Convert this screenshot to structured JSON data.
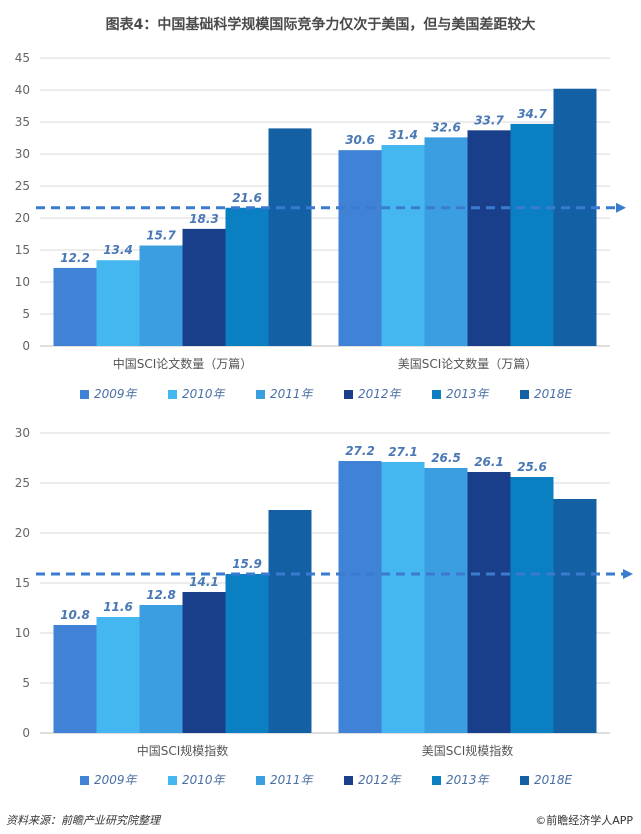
{
  "title": "图表4：中国基础科学规模国际竞争力仅次于美国，但与美国差距较大",
  "footer": {
    "source": "资料来源：前瞻产业研究院整理",
    "brand": "©前瞻经济学人APP"
  },
  "colors": {
    "series": [
      "#3f82d6",
      "#45b7f0",
      "#3a9ee0",
      "#1a3f8a",
      "#0a7fc2",
      "#1460a5"
    ],
    "dashed_line": "#3a7bd0"
  },
  "chart_data": [
    {
      "type": "bar",
      "categories": [
        "中国SCI论文数量（万篇）",
        "美国SCI论文数量（万篇）"
      ],
      "legend_labels": [
        "2009年",
        "2010年",
        "2011年",
        "2012年",
        "2013年",
        "2018E"
      ],
      "series": [
        {
          "values": [
            12.2,
            30.6
          ],
          "labels": [
            "12.2",
            "30.6"
          ]
        },
        {
          "values": [
            13.4,
            31.4
          ],
          "labels": [
            "13.4",
            "31.4"
          ]
        },
        {
          "values": [
            15.7,
            32.6
          ],
          "labels": [
            "15.7",
            "32.6"
          ]
        },
        {
          "values": [
            18.3,
            33.7
          ],
          "labels": [
            "18.3",
            "33.7"
          ]
        },
        {
          "values": [
            21.6,
            34.7
          ],
          "labels": [
            "21.6",
            "34.7"
          ]
        },
        {
          "values": [
            34.0,
            40.2
          ],
          "labels": [
            "",
            ""
          ]
        }
      ],
      "yticks": [
        "0",
        "5",
        "10",
        "15",
        "20",
        "25",
        "30",
        "35",
        "40",
        "45"
      ],
      "ylim": [
        0,
        45
      ],
      "reference_line": 21.6,
      "legend_position": "bottom",
      "grid": true
    },
    {
      "type": "bar",
      "categories": [
        "中国SCI规模指数",
        "美国SCI规模指数"
      ],
      "legend_labels": [
        "2009年",
        "2010年",
        "2011年",
        "2012年",
        "2013年",
        "2018E"
      ],
      "series": [
        {
          "values": [
            10.8,
            27.2
          ],
          "labels": [
            "10.8",
            "27.2"
          ]
        },
        {
          "values": [
            11.6,
            27.1
          ],
          "labels": [
            "11.6",
            "27.1"
          ]
        },
        {
          "values": [
            12.8,
            26.5
          ],
          "labels": [
            "12.8",
            "26.5"
          ]
        },
        {
          "values": [
            14.1,
            26.1
          ],
          "labels": [
            "14.1",
            "26.1"
          ]
        },
        {
          "values": [
            15.9,
            25.6
          ],
          "labels": [
            "15.9",
            "25.6"
          ]
        },
        {
          "values": [
            22.3,
            23.4
          ],
          "labels": [
            "",
            ""
          ]
        }
      ],
      "yticks": [
        "0",
        "5",
        "10",
        "15",
        "20",
        "25",
        "30"
      ],
      "ylim": [
        0,
        30
      ],
      "reference_line": 15.9,
      "legend_position": "bottom",
      "grid": true
    }
  ]
}
